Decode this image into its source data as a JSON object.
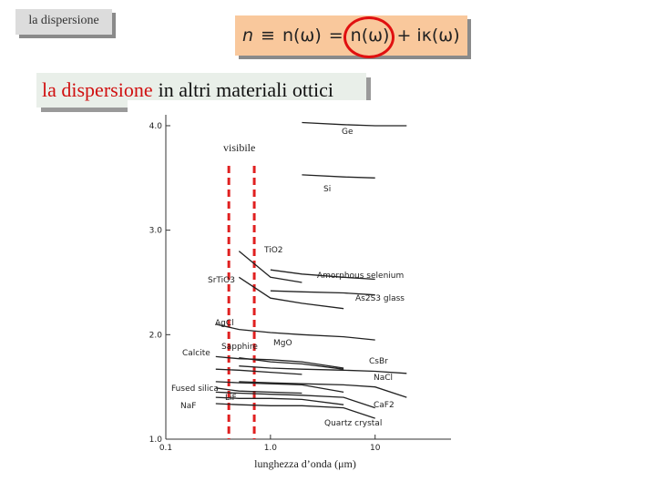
{
  "header": {
    "label": "la dispersione",
    "formula": [
      "n",
      "≡",
      "n(ω)",
      "=",
      "n(ω)",
      "+ iκ(ω)"
    ]
  },
  "heading": {
    "highlight": "la dispersione",
    "rest": "in altri materiali ottici"
  },
  "chart_data": {
    "type": "line",
    "x_label": "lunghezza d’onda (μm)",
    "x_scale": "log",
    "x": [
      0.3,
      0.5,
      1,
      2,
      5,
      10,
      20
    ],
    "xlim": [
      0.1,
      50
    ],
    "xticks": [
      0.1,
      {
        "value": 1,
        "label": "1.0"
      },
      10
    ],
    "ylim": [
      1.0,
      4.1
    ],
    "yticks": [
      {
        "value": 1,
        "label": "1.0"
      },
      {
        "value": 2,
        "label": "2.0"
      },
      {
        "value": 3,
        "label": "3.0"
      },
      {
        "value": 4,
        "label": "4.0"
      }
    ],
    "visible_band": [
      0.4,
      0.7
    ],
    "visible_label": "visibile",
    "visible_color": "#e02020",
    "color": "#222222",
    "series": [
      {
        "name": "Ge",
        "values": [
          null,
          null,
          null,
          4.03,
          4.01,
          4.0,
          4.0
        ]
      },
      {
        "name": "Si",
        "values": [
          null,
          null,
          null,
          3.53,
          3.51,
          3.5,
          null
        ]
      },
      {
        "name": "TiO2",
        "values": [
          null,
          2.8,
          2.55,
          2.5,
          null,
          null,
          null
        ]
      },
      {
        "name": "SrTiO3",
        "values": [
          null,
          2.55,
          2.35,
          2.3,
          2.25,
          null,
          null
        ]
      },
      {
        "name": "Amorphous selenium",
        "values": [
          null,
          null,
          2.62,
          2.58,
          2.55,
          2.53,
          null
        ]
      },
      {
        "name": "As2S3 glass",
        "values": [
          null,
          null,
          2.42,
          2.41,
          2.4,
          2.38,
          null
        ]
      },
      {
        "name": "AgCl",
        "values": [
          2.1,
          2.05,
          2.02,
          2.0,
          1.98,
          1.95,
          null
        ]
      },
      {
        "name": "MgO",
        "values": [
          null,
          1.78,
          1.74,
          1.72,
          1.67,
          null,
          null
        ]
      },
      {
        "name": "Sapphire",
        "values": [
          1.79,
          1.77,
          1.76,
          1.74,
          1.68,
          null,
          null
        ]
      },
      {
        "name": "CsBr",
        "values": [
          null,
          1.7,
          1.68,
          1.67,
          1.66,
          1.65,
          1.63
        ]
      },
      {
        "name": "Calcite",
        "values": [
          1.67,
          1.66,
          1.64,
          1.62,
          null,
          null,
          null
        ]
      },
      {
        "name": "NaCl",
        "values": [
          null,
          1.55,
          1.54,
          1.53,
          1.52,
          1.5,
          1.4
        ]
      },
      {
        "name": "Fused silica",
        "values": [
          1.49,
          1.46,
          1.45,
          1.44,
          null,
          null,
          null
        ]
      },
      {
        "name": "LiF",
        "values": [
          1.4,
          1.39,
          1.39,
          1.38,
          1.33,
          null,
          null
        ]
      },
      {
        "name": "CaF2",
        "values": [
          1.45,
          1.44,
          1.43,
          1.42,
          1.4,
          1.3,
          null
        ]
      },
      {
        "name": "NaF",
        "values": [
          1.34,
          1.33,
          1.32,
          1.32,
          1.3,
          1.2,
          null
        ]
      },
      {
        "name": "Quartz crystal",
        "values": [
          1.55,
          1.54,
          1.53,
          1.52,
          1.45,
          null,
          null
        ]
      }
    ]
  }
}
